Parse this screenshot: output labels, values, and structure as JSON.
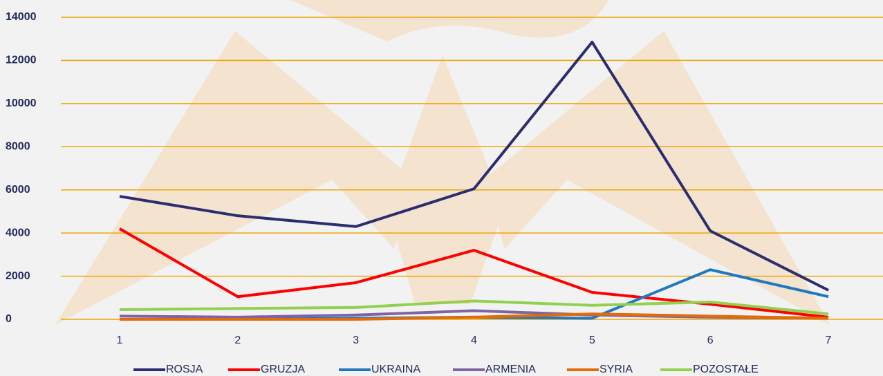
{
  "chart_data": {
    "type": "line",
    "categories": [
      "1",
      "2",
      "3",
      "4",
      "5",
      "6",
      "7"
    ],
    "series": [
      {
        "name": "ROSJA",
        "color": "#2b2d6e",
        "values": [
          5700,
          4800,
          4300,
          6050,
          12850,
          4100,
          1350
        ]
      },
      {
        "name": "GRUZJA",
        "color": "#ff0000",
        "values": [
          4200,
          1050,
          1700,
          3200,
          1250,
          700,
          100
        ]
      },
      {
        "name": "UKRAINA",
        "color": "#1f78c1",
        "values": [
          0,
          0,
          50,
          100,
          50,
          2300,
          1050
        ]
      },
      {
        "name": "ARMENIA",
        "color": "#8064a2",
        "values": [
          150,
          100,
          200,
          400,
          200,
          100,
          50
        ]
      },
      {
        "name": "SYRIA",
        "color": "#e36c09",
        "values": [
          0,
          0,
          0,
          100,
          250,
          150,
          50
        ]
      },
      {
        "name": "POZOSTAŁE",
        "color": "#92d050",
        "values": [
          450,
          500,
          550,
          850,
          650,
          800,
          250
        ]
      }
    ],
    "ylim": [
      0,
      14000
    ],
    "yticks": [
      0,
      2000,
      4000,
      6000,
      8000,
      10000,
      12000,
      14000
    ],
    "grid": true,
    "grid_color": "#f0a500",
    "legend": "bottom"
  }
}
